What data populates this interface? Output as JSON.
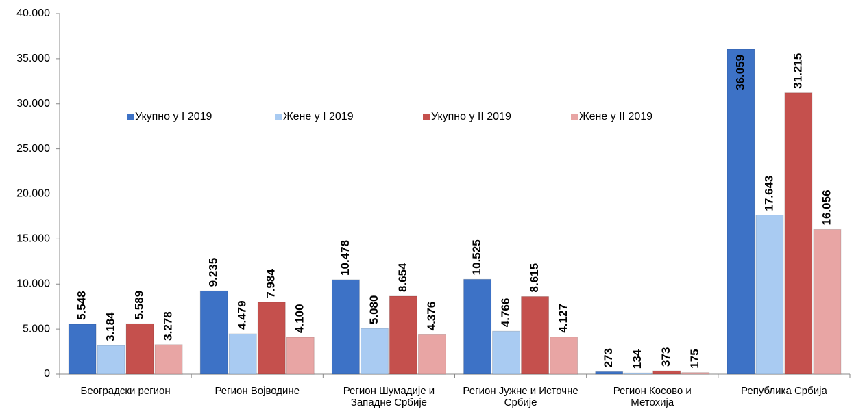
{
  "chart_data": {
    "type": "bar",
    "categories": [
      "Београдски регион",
      "Регион Војводине",
      "Регион Шумадије и Западне Србије",
      "Регион Јужне и Источне Србије",
      "Регион Косово и Метохија",
      "Република Србија"
    ],
    "series": [
      {
        "name": "Укупно у I 2019",
        "color": "#3d72c6",
        "values": [
          5548,
          9235,
          10478,
          10525,
          273,
          36059
        ],
        "value_labels": [
          "5.548",
          "9.235",
          "10.478",
          "10.525",
          "273",
          "36.059"
        ]
      },
      {
        "name": "Жене у I 2019",
        "color": "#a9cbf2",
        "values": [
          3184,
          4479,
          5080,
          4766,
          134,
          17643
        ],
        "value_labels": [
          "3.184",
          "4.479",
          "5.080",
          "4.766",
          "134",
          "17.643"
        ]
      },
      {
        "name": "Укупно у II 2019",
        "color": "#c5504d",
        "values": [
          5589,
          7984,
          8654,
          8615,
          373,
          31215
        ],
        "value_labels": [
          "5.589",
          "7.984",
          "8.654",
          "8.615",
          "373",
          "31.215"
        ]
      },
      {
        "name": "Жене у II 2019",
        "color": "#e8a5a4",
        "values": [
          3278,
          4100,
          4376,
          4127,
          175,
          16056
        ],
        "value_labels": [
          "3.278",
          "4.100",
          "4.376",
          "4.127",
          "175",
          "16.056"
        ]
      }
    ],
    "ylim": [
      0,
      40000
    ],
    "yticks": [
      0,
      {
        "value": 5000,
        "label": "5.000"
      },
      {
        "value": 10000,
        "label": "10.000"
      },
      {
        "value": 15000,
        "label": "15.000"
      },
      {
        "value": 20000,
        "label": "20.000"
      },
      {
        "value": 25000,
        "label": "25.000"
      },
      {
        "value": 30000,
        "label": "30.000"
      },
      {
        "value": 35000,
        "label": "35.000"
      },
      {
        "value": 40000,
        "label": "40.000"
      }
    ],
    "grid": false,
    "legend": "top"
  }
}
